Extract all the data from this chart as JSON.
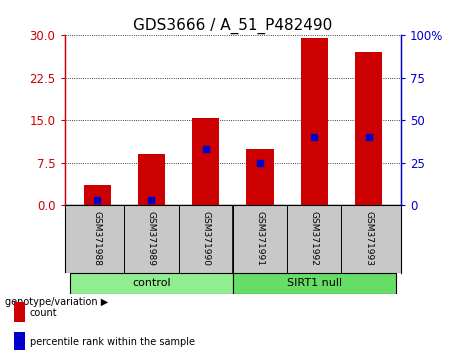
{
  "title": "GDS3666 / A_51_P482490",
  "samples": [
    "GSM371988",
    "GSM371989",
    "GSM371990",
    "GSM371991",
    "GSM371992",
    "GSM371993"
  ],
  "count_values": [
    3.5,
    9.0,
    15.5,
    10.0,
    29.5,
    27.0
  ],
  "percentile_right": [
    3.3,
    3.3,
    33.0,
    25.0,
    40.0,
    40.0
  ],
  "ylim_left": [
    0,
    30
  ],
  "ylim_right": [
    0,
    100
  ],
  "yticks_left": [
    0,
    7.5,
    15,
    22.5,
    30
  ],
  "yticks_right": [
    0,
    25,
    50,
    75,
    100
  ],
  "bar_color": "#cc0000",
  "dot_color": "#0000cc",
  "groups": [
    {
      "label": "control",
      "indices": [
        0,
        1,
        2
      ],
      "color": "#90ee90"
    },
    {
      "label": "SIRT1 null",
      "indices": [
        3,
        4,
        5
      ],
      "color": "#66dd66"
    }
  ],
  "legend_items": [
    {
      "label": "count",
      "color": "#cc0000"
    },
    {
      "label": "percentile rank within the sample",
      "color": "#0000cc"
    }
  ],
  "bar_width": 0.5,
  "plot_bg": "#ffffff",
  "label_area_bg": "#c8c8c8",
  "title_fontsize": 11,
  "tick_fontsize": 8.5,
  "axis_color_left": "#cc0000",
  "axis_color_right": "#0000cc"
}
